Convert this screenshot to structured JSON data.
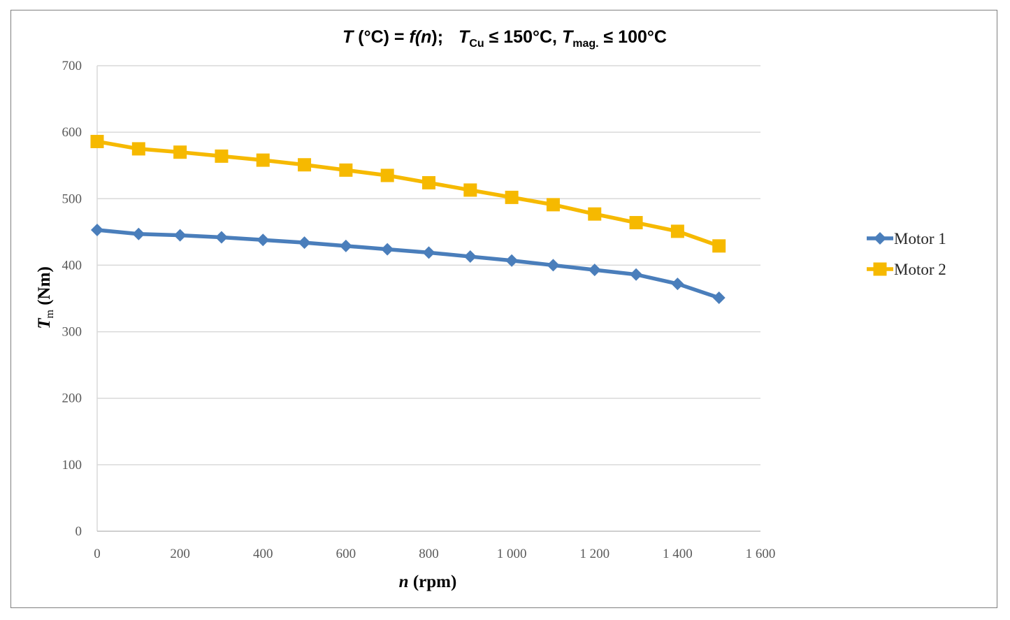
{
  "chart_data": {
    "type": "line",
    "title": {
      "pre": "T",
      "celsius_lhs": " (°C) = ",
      "f": "f(",
      "n": "n",
      "close": ");",
      "t_cu": "T",
      "cu_sub": "Cu",
      "cu_cond": " ≤ 150°C, ",
      "t_mag": "T",
      "mag_sub": "mag.",
      "mag_cond": " ≤ 100°C"
    },
    "xlabel": {
      "var": "n",
      "unit": " (rpm)"
    },
    "ylabel": {
      "var": "T",
      "sub": "m",
      "unit": " (Nm)"
    },
    "xlim": [
      0,
      1600
    ],
    "ylim": [
      0,
      700
    ],
    "x_ticks": [
      0,
      200,
      400,
      600,
      800,
      1000,
      1200,
      1400,
      1600
    ],
    "x_tick_labels": [
      "0",
      "200",
      "400",
      "600",
      "800",
      "1 000",
      "1 200",
      "1 400",
      "1 600"
    ],
    "y_ticks": [
      0,
      100,
      200,
      300,
      400,
      500,
      600,
      700
    ],
    "y_tick_labels": [
      "0",
      "100",
      "200",
      "300",
      "400",
      "500",
      "600",
      "700"
    ],
    "grid": "horizontal",
    "legend_position": "right",
    "x": [
      0,
      100,
      200,
      300,
      400,
      500,
      600,
      700,
      800,
      900,
      1000,
      1100,
      1200,
      1300,
      1400,
      1500
    ],
    "series": [
      {
        "name": "Motor 1",
        "color": "#4a7ebb",
        "marker": "diamond",
        "values": [
          453,
          447,
          445,
          442,
          438,
          434,
          429,
          424,
          419,
          413,
          407,
          400,
          393,
          386,
          372,
          351
        ]
      },
      {
        "name": "Motor 2",
        "color": "#f6b900",
        "marker": "square",
        "values": [
          586,
          575,
          570,
          564,
          558,
          551,
          543,
          535,
          524,
          513,
          502,
          491,
          477,
          464,
          451,
          429
        ]
      }
    ]
  }
}
